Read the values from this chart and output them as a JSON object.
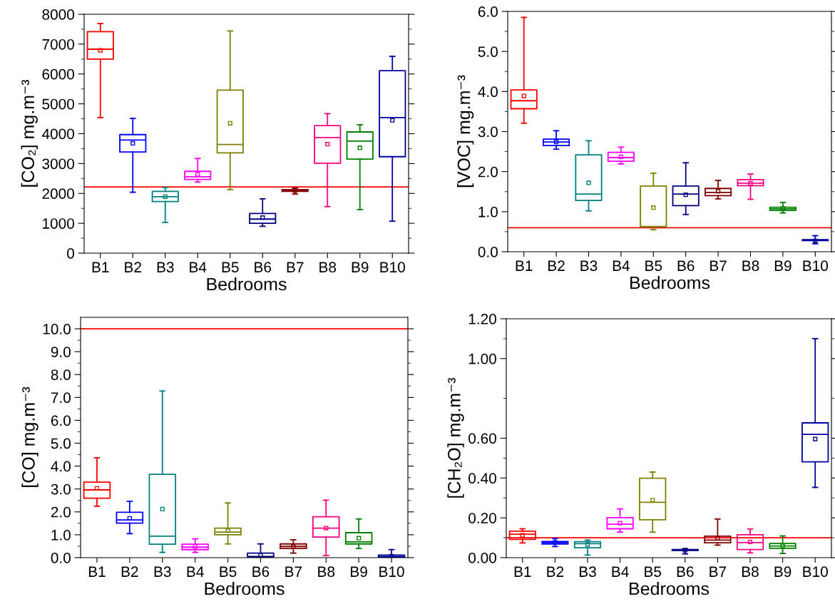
{
  "chart_data": [
    {
      "type": "box",
      "xlabel": "Bedrooms",
      "ylabel": "[CO₂] mg.m⁻³",
      "categories": [
        "B1",
        "B2",
        "B3",
        "B4",
        "B5",
        "B6",
        "B7",
        "B8",
        "B9",
        "B10"
      ],
      "colors": [
        "#ff0000",
        "#0000ff",
        "#008080",
        "#ff00ff",
        "#808000",
        "#000080",
        "#800000",
        "#ff0080",
        "#008000",
        "#0000a0"
      ],
      "boxes": [
        {
          "low": 4540,
          "q1": 6500,
          "median": 6830,
          "q3": 7420,
          "high": 7690,
          "mean": 6790
        },
        {
          "low": 2040,
          "q1": 3390,
          "median": 3790,
          "q3": 3970,
          "high": 4510,
          "mean": 3680
        },
        {
          "low": 1030,
          "q1": 1730,
          "median": 1890,
          "q3": 2070,
          "high": 2200,
          "mean": 1890
        },
        {
          "low": 2380,
          "q1": 2470,
          "median": 2560,
          "q3": 2740,
          "high": 3170,
          "mean": 2640
        },
        {
          "low": 2130,
          "q1": 3360,
          "median": 3640,
          "q3": 5460,
          "high": 7440,
          "mean": 4350
        },
        {
          "low": 900,
          "q1": 1000,
          "median": 1140,
          "q3": 1330,
          "high": 1820,
          "mean": 1190
        },
        {
          "low": 1980,
          "q1": 2070,
          "median": 2090,
          "q3": 2130,
          "high": 2180,
          "mean": 2090
        },
        {
          "low": 1560,
          "q1": 3010,
          "median": 3870,
          "q3": 4270,
          "high": 4670,
          "mean": 3650
        },
        {
          "low": 1460,
          "q1": 3150,
          "median": 3750,
          "q3": 4060,
          "high": 4300,
          "mean": 3530
        },
        {
          "low": 1070,
          "q1": 3230,
          "median": 4540,
          "q3": 6110,
          "high": 6590,
          "mean": 4450
        }
      ],
      "ylim": [
        0,
        8000
      ],
      "yticks": [
        0,
        1000,
        2000,
        3000,
        4000,
        5000,
        6000,
        7000,
        8000
      ],
      "ref_lines": [
        {
          "axis": "y",
          "value": 2220,
          "color": "#ff0000"
        }
      ],
      "grid": false,
      "legend": false
    },
    {
      "type": "box",
      "xlabel": "Bedrooms",
      "ylabel": "[VOC] mg.m⁻³",
      "categories": [
        "B1",
        "B2",
        "B3",
        "B4",
        "B5",
        "B6",
        "B7",
        "B8",
        "B9",
        "B10"
      ],
      "colors": [
        "#ff0000",
        "#0000ff",
        "#008080",
        "#ff00ff",
        "#808000",
        "#000080",
        "#800000",
        "#ff0080",
        "#008000",
        "#0000a0"
      ],
      "boxes": [
        {
          "low": 3.21,
          "q1": 3.57,
          "median": 3.77,
          "q3": 4.04,
          "high": 5.85,
          "mean": 3.89
        },
        {
          "low": 2.56,
          "q1": 2.65,
          "median": 2.74,
          "q3": 2.81,
          "high": 3.02,
          "mean": 2.74
        },
        {
          "low": 1.02,
          "q1": 1.28,
          "median": 1.44,
          "q3": 2.42,
          "high": 2.77,
          "mean": 1.72
        },
        {
          "low": 2.19,
          "q1": 2.26,
          "median": 2.35,
          "q3": 2.48,
          "high": 2.61,
          "mean": 2.37
        },
        {
          "low": 0.55,
          "q1": 0.62,
          "median": 0.63,
          "q3": 1.64,
          "high": 1.96,
          "mean": 1.1
        },
        {
          "low": 0.93,
          "q1": 1.15,
          "median": 1.44,
          "q3": 1.64,
          "high": 2.22,
          "mean": 1.42
        },
        {
          "low": 1.32,
          "q1": 1.4,
          "median": 1.48,
          "q3": 1.58,
          "high": 1.78,
          "mean": 1.51
        },
        {
          "low": 1.31,
          "q1": 1.65,
          "median": 1.71,
          "q3": 1.8,
          "high": 1.94,
          "mean": 1.71
        },
        {
          "low": 0.97,
          "q1": 1.03,
          "median": 1.07,
          "q3": 1.11,
          "high": 1.23,
          "mean": 1.08
        },
        {
          "low": 0.2,
          "q1": 0.28,
          "median": 0.29,
          "q3": 0.3,
          "high": 0.4,
          "mean": 0.27
        }
      ],
      "ylim": [
        0,
        6
      ],
      "yticks": [
        {
          "value": 0,
          "label": "0.0"
        },
        {
          "value": 1,
          "label": "1.0"
        },
        {
          "value": 2,
          "label": "2.0"
        },
        {
          "value": 3,
          "label": "3.0"
        },
        {
          "value": 4,
          "label": "4.0"
        },
        {
          "value": 5,
          "label": "5.0"
        },
        {
          "value": 6,
          "label": "6.0"
        }
      ],
      "ref_lines": [
        {
          "axis": "y",
          "value": 0.6,
          "color": "#ff0000"
        }
      ],
      "grid": false,
      "legend": false
    },
    {
      "type": "box",
      "xlabel": "Bedrooms",
      "ylabel": "[CO] mg.m⁻³",
      "categories": [
        "B1",
        "B2",
        "B3",
        "B4",
        "B5",
        "B6",
        "B7",
        "B8",
        "B9",
        "B10"
      ],
      "colors": [
        "#ff0000",
        "#0000ff",
        "#008080",
        "#ff00ff",
        "#808000",
        "#000080",
        "#800000",
        "#ff0080",
        "#008000",
        "#0000a0"
      ],
      "boxes": [
        {
          "low": 2.25,
          "q1": 2.6,
          "median": 2.96,
          "q3": 3.3,
          "high": 4.36,
          "mean": 3.03
        },
        {
          "low": 1.05,
          "q1": 1.51,
          "median": 1.65,
          "q3": 1.98,
          "high": 2.46,
          "mean": 1.72
        },
        {
          "low": 0.23,
          "q1": 0.59,
          "median": 0.94,
          "q3": 3.64,
          "high": 7.28,
          "mean": 2.12
        },
        {
          "low": 0.23,
          "q1": 0.35,
          "median": 0.46,
          "q3": 0.59,
          "high": 0.82,
          "mean": 0.49
        },
        {
          "low": 0.6,
          "q1": 1.0,
          "median": 1.12,
          "q3": 1.29,
          "high": 2.39,
          "mean": 1.18
        },
        {
          "low": 0,
          "q1": 0,
          "median": 0.05,
          "q3": 0.2,
          "high": 0.6,
          "mean": 0.11
        },
        {
          "low": 0.2,
          "q1": 0.4,
          "median": 0.49,
          "q3": 0.6,
          "high": 0.78,
          "mean": 0.48
        },
        {
          "low": 0.09,
          "q1": 0.9,
          "median": 1.29,
          "q3": 1.79,
          "high": 2.51,
          "mean": 1.29
        },
        {
          "low": 0.4,
          "q1": 0.6,
          "median": 0.69,
          "q3": 1.09,
          "high": 1.69,
          "mean": 0.85
        },
        {
          "low": 0,
          "q1": 0,
          "median": 0.05,
          "q3": 0.11,
          "high": 0.35,
          "mean": 0.06
        }
      ],
      "ylim": [
        0,
        10.5
      ],
      "yticks": [
        {
          "value": 0,
          "label": "0.0"
        },
        {
          "value": 1,
          "label": "1.0"
        },
        {
          "value": 2,
          "label": "2.0"
        },
        {
          "value": 3,
          "label": "3.0"
        },
        {
          "value": 4,
          "label": "4.0"
        },
        {
          "value": 5,
          "label": "5.0"
        },
        {
          "value": 6,
          "label": "6.0"
        },
        {
          "value": 7,
          "label": "7.0"
        },
        {
          "value": 8,
          "label": "8.0"
        },
        {
          "value": 9,
          "label": "9.0"
        },
        {
          "value": 10,
          "label": "10.0"
        }
      ],
      "ref_lines": [
        {
          "axis": "y",
          "value": 10,
          "color": "#ff0000"
        }
      ],
      "grid": false,
      "legend": false
    },
    {
      "type": "box",
      "xlabel": "Bedrooms",
      "ylabel": "[CH₂O] mg.m⁻³",
      "categories": [
        "B1",
        "B2",
        "B3",
        "B4",
        "B5",
        "B6",
        "B7",
        "B8",
        "B9",
        "B10"
      ],
      "colors": [
        "#ff0000",
        "#0000ff",
        "#008080",
        "#ff00ff",
        "#808000",
        "#000080",
        "#800000",
        "#ff0080",
        "#008000",
        "#0000a0"
      ],
      "boxes": [
        {
          "low": 0.074,
          "q1": 0.092,
          "median": 0.118,
          "q3": 0.133,
          "high": 0.145,
          "mean": 0.112
        },
        {
          "low": 0.056,
          "q1": 0.069,
          "median": 0.076,
          "q3": 0.081,
          "high": 0.096,
          "mean": 0.077
        },
        {
          "low": 0.013,
          "q1": 0.05,
          "median": 0.07,
          "q3": 0.08,
          "high": 0.088,
          "mean": 0.066
        },
        {
          "low": 0.128,
          "q1": 0.145,
          "median": 0.168,
          "q3": 0.201,
          "high": 0.245,
          "mean": 0.173
        },
        {
          "low": 0.128,
          "q1": 0.19,
          "median": 0.278,
          "q3": 0.399,
          "high": 0.43,
          "mean": 0.289
        },
        {
          "low": 0.019,
          "q1": 0.036,
          "median": 0.038,
          "q3": 0.041,
          "high": 0.045,
          "mean": 0.037
        },
        {
          "low": 0.063,
          "q1": 0.075,
          "median": 0.088,
          "q3": 0.108,
          "high": 0.194,
          "mean": 0.098
        },
        {
          "low": 0.024,
          "q1": 0.041,
          "median": 0.076,
          "q3": 0.115,
          "high": 0.144,
          "mean": 0.079
        },
        {
          "low": 0.021,
          "q1": 0.047,
          "median": 0.059,
          "q3": 0.071,
          "high": 0.109,
          "mean": 0.059
        },
        {
          "low": 0.353,
          "q1": 0.481,
          "median": 0.619,
          "q3": 0.677,
          "high": 1.1,
          "mean": 0.596
        }
      ],
      "ylim": [
        0,
        1.2
      ],
      "yticks": [
        {
          "value": 0,
          "label": "0.00"
        },
        {
          "value": 0.2,
          "label": "0.20"
        },
        {
          "value": 0.4,
          "label": "0.40"
        },
        {
          "value": 0.6,
          "label": "0.60"
        },
        {
          "value": 1.0,
          "label": "1.00"
        },
        {
          "value": 1.2,
          "label": "1.20"
        }
      ],
      "ref_lines": [
        {
          "axis": "y",
          "value": 0.1,
          "color": "#ff0000"
        }
      ],
      "grid": false,
      "legend": false
    }
  ]
}
